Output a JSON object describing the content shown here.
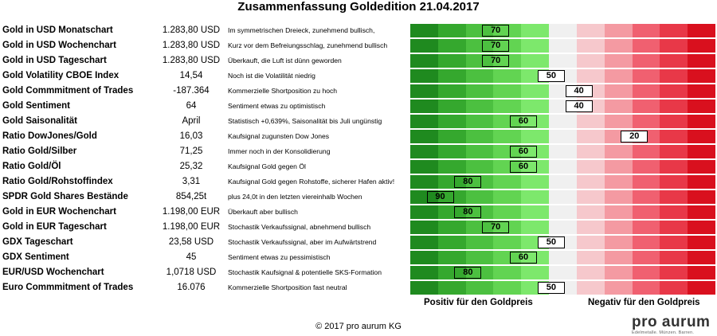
{
  "chart_data": {
    "type": "table",
    "title": "Zusammenfassung Goldedition 21.04.2017",
    "scale": [
      90,
      80,
      70,
      60,
      50,
      40,
      30,
      20,
      10
    ],
    "rows": [
      {
        "name": "Gold in USD Monatschart",
        "value": "1.283,80 USD",
        "comment": "Im symmetrischen Dreieck, zunehmend bullisch,",
        "score": 70
      },
      {
        "name": "Gold in USD Wochenchart",
        "value": "1.283,80 USD",
        "comment": "Kurz vor dem Befreiungsschlag, zunehmend bullisch",
        "score": 70
      },
      {
        "name": "Gold in USD Tageschart",
        "value": "1.283,80 USD",
        "comment": "Überkauft, die Luft ist dünn geworden",
        "score": 70
      },
      {
        "name": "Gold Volatility CBOE Index",
        "value": "14,54",
        "comment": "Noch ist die Volatilität niedrig",
        "score": 50
      },
      {
        "name": "Gold Commmitment of Trades",
        "value": "-187.364",
        "comment": "Kommerzielle Shortposition zu hoch",
        "score": 40
      },
      {
        "name": "Gold Sentiment",
        "value": "64",
        "comment": "Sentiment etwas zu optimistisch",
        "score": 40
      },
      {
        "name": "Gold Saisonalität",
        "value": "April",
        "comment": "Statistisch +0,639%, Saisonalität bis Juli ungünstig",
        "score": 60
      },
      {
        "name": "Ratio DowJones/Gold",
        "value": "16,03",
        "comment": "Kaufsignal zugunsten Dow Jones",
        "score": 20
      },
      {
        "name": "Ratio Gold/Silber",
        "value": "71,25",
        "comment": "Immer noch in der Konsolidierung",
        "score": 60
      },
      {
        "name": "Ratio Gold/Öl",
        "value": "25,32",
        "comment": "Kaufsignal Gold gegen Öl",
        "score": 60
      },
      {
        "name": "Ratio Gold/Rohstoffindex",
        "value": "3,31",
        "comment": "Kaufsignal Gold gegen Rohstoffe, sicherer Hafen aktiv!",
        "score": 80
      },
      {
        "name": "SPDR Gold Shares Bestände",
        "value": "854,25t",
        "comment": "plus 24,0t in den letzten viereinhalb Wochen",
        "score": 90
      },
      {
        "name": "Gold in EUR Wochenchart",
        "value": "1.198,00 EUR",
        "comment": "Überkauft aber bullisch",
        "score": 80
      },
      {
        "name": "Gold in EUR Tageschart",
        "value": "1.198,00 EUR",
        "comment": "Stochastik Verkaufssignal, abnehmend bullisch",
        "score": 70
      },
      {
        "name": "GDX Tageschart",
        "value": "23,58 USD",
        "comment": "Stochastik Verkaufssignal, aber im Aufwärtstrend",
        "score": 50
      },
      {
        "name": "GDX Sentiment",
        "value": "45",
        "comment": "Sentiment etwas zu pessimistisch",
        "score": 60
      },
      {
        "name": "EUR/USD Wochenchart",
        "value": "1,0718 USD",
        "comment": "Stochastik Kaufsignal & potentielle SKS-Formation",
        "score": 80
      },
      {
        "name": "Euro Commmitment of Trades",
        "value": "16.076",
        "comment": "Kommerzielle Shortposition fast neutral",
        "score": 50
      }
    ],
    "positive_label": "Positiv für den Goldpreis",
    "negative_label": "Negativ für den Goldpreis"
  },
  "colors": {
    "green": [
      "#1f8a1f",
      "#35a82e",
      "#4cc040",
      "#62d452",
      "#7de86c"
    ],
    "neutral": "#f0f0f0",
    "red": [
      "#f6c8cc",
      "#f49aa2",
      "#f06070",
      "#e83848",
      "#d9101e"
    ]
  },
  "footer": {
    "copyright": "© 2017 pro aurum KG",
    "logo": "pro aurum",
    "logo_tagline": "Edelmetalle. Münzen. Barren."
  }
}
